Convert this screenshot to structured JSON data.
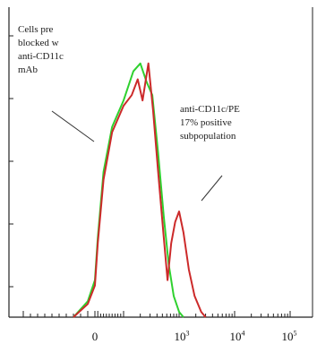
{
  "chart_data": {
    "type": "line",
    "title": "",
    "xlabel": "",
    "ylabel": "",
    "x_scale": "log (with 0)",
    "x_ticks": [
      {
        "value": 0,
        "label": "0"
      },
      {
        "value": 1000,
        "base": "10",
        "exp": "3"
      },
      {
        "value": 10000,
        "base": "10",
        "exp": "4"
      },
      {
        "value": 100000,
        "base": "10",
        "exp": "5"
      }
    ],
    "grid": false,
    "legend": "none",
    "series": [
      {
        "color": "#2fd12f",
        "points": [
          [
            -30,
            0
          ],
          [
            -10,
            6
          ],
          [
            0,
            14
          ],
          [
            10,
            30
          ],
          [
            30,
            55
          ],
          [
            60,
            72
          ],
          [
            100,
            82
          ],
          [
            150,
            93
          ],
          [
            200,
            96
          ],
          [
            260,
            89
          ],
          [
            330,
            84
          ],
          [
            420,
            62
          ],
          [
            530,
            38
          ],
          [
            650,
            20
          ],
          [
            800,
            8
          ],
          [
            1000,
            2
          ],
          [
            1200,
            0
          ]
        ]
      },
      {
        "color": "#cc2a2a",
        "points": [
          [
            -30,
            0
          ],
          [
            -10,
            5
          ],
          [
            0,
            12
          ],
          [
            10,
            28
          ],
          [
            30,
            52
          ],
          [
            60,
            70
          ],
          [
            100,
            80
          ],
          [
            140,
            84
          ],
          [
            180,
            90
          ],
          [
            220,
            82
          ],
          [
            280,
            96
          ],
          [
            340,
            78
          ],
          [
            420,
            55
          ],
          [
            520,
            32
          ],
          [
            620,
            14
          ],
          [
            720,
            28
          ],
          [
            850,
            36
          ],
          [
            1000,
            40
          ],
          [
            1200,
            32
          ],
          [
            1500,
            18
          ],
          [
            1900,
            8
          ],
          [
            2500,
            2
          ],
          [
            3000,
            0
          ]
        ]
      }
    ],
    "annotations": [
      {
        "lines": [
          "Cells pre",
          "blocked w",
          "anti-CD11c",
          "mAb"
        ]
      },
      {
        "lines": [
          "anti-CD11c/PE",
          "17% positive",
          "subpopulation"
        ]
      }
    ]
  }
}
